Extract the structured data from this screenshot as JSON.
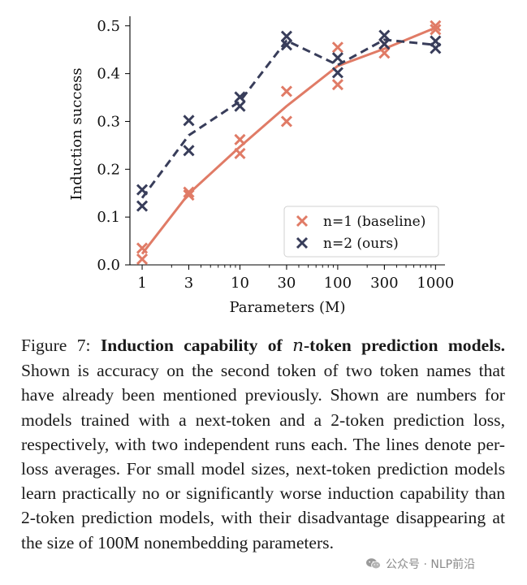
{
  "chart_data": {
    "type": "scatter",
    "xlabel": "Parameters (M)",
    "ylabel": "Induction success",
    "x_scale": "log",
    "xlim": [
      0.75,
      1250
    ],
    "ylim": [
      0.0,
      0.52
    ],
    "x_ticks": [
      1,
      3,
      10,
      30,
      100,
      300,
      1000
    ],
    "x_tick_labels": [
      "1",
      "3",
      "10",
      "30",
      "100",
      "300",
      "1000"
    ],
    "y_ticks": [
      0.0,
      0.1,
      0.2,
      0.3,
      0.4,
      0.5
    ],
    "y_tick_labels": [
      "0.0",
      "0.1",
      "0.2",
      "0.3",
      "0.4",
      "0.5"
    ],
    "legend_position": "lower-right",
    "series": [
      {
        "name": "n=1 (baseline)",
        "color": "#e07b66",
        "line_style": "solid",
        "x": [
          1,
          3,
          10,
          30,
          100,
          300,
          1000
        ],
        "run1": [
          0.035,
          0.152,
          0.262,
          0.363,
          0.455,
          0.462,
          0.5
        ],
        "run2": [
          0.012,
          0.146,
          0.233,
          0.3,
          0.377,
          0.443,
          0.492
        ],
        "mean": [
          0.023,
          0.149,
          0.247,
          0.332,
          0.416,
          0.452,
          0.496
        ]
      },
      {
        "name": "n=2 (ours)",
        "color": "#383d5a",
        "line_style": "dashed",
        "x": [
          1,
          3,
          10,
          30,
          100,
          300,
          1000
        ],
        "run1": [
          0.157,
          0.302,
          0.351,
          0.478,
          0.433,
          0.48,
          0.468
        ],
        "run2": [
          0.123,
          0.239,
          0.332,
          0.46,
          0.402,
          0.462,
          0.453
        ],
        "mean": [
          0.14,
          0.271,
          0.342,
          0.469,
          0.418,
          0.471,
          0.46
        ]
      }
    ]
  },
  "caption": {
    "label": "Figure 7: ",
    "bold_before": "Induction capability of ",
    "italic_var": "n",
    "bold_after": "-token prediction models.",
    "body": " Shown is accuracy on the second token of two token names that have already been mentioned previously. Shown are numbers for models trained with a next-token and a 2-token prediction loss, respectively, with two independent runs each. The lines denote per-loss averages. For small model sizes, next-token prediction models learn practically no or significantly worse induction capability than 2-token prediction models, with their disadvantage disappearing at the size of 100M nonembedding parameters."
  },
  "watermark": {
    "text": "公众号 · NLP前沿",
    "icon": "wechat-icon"
  }
}
